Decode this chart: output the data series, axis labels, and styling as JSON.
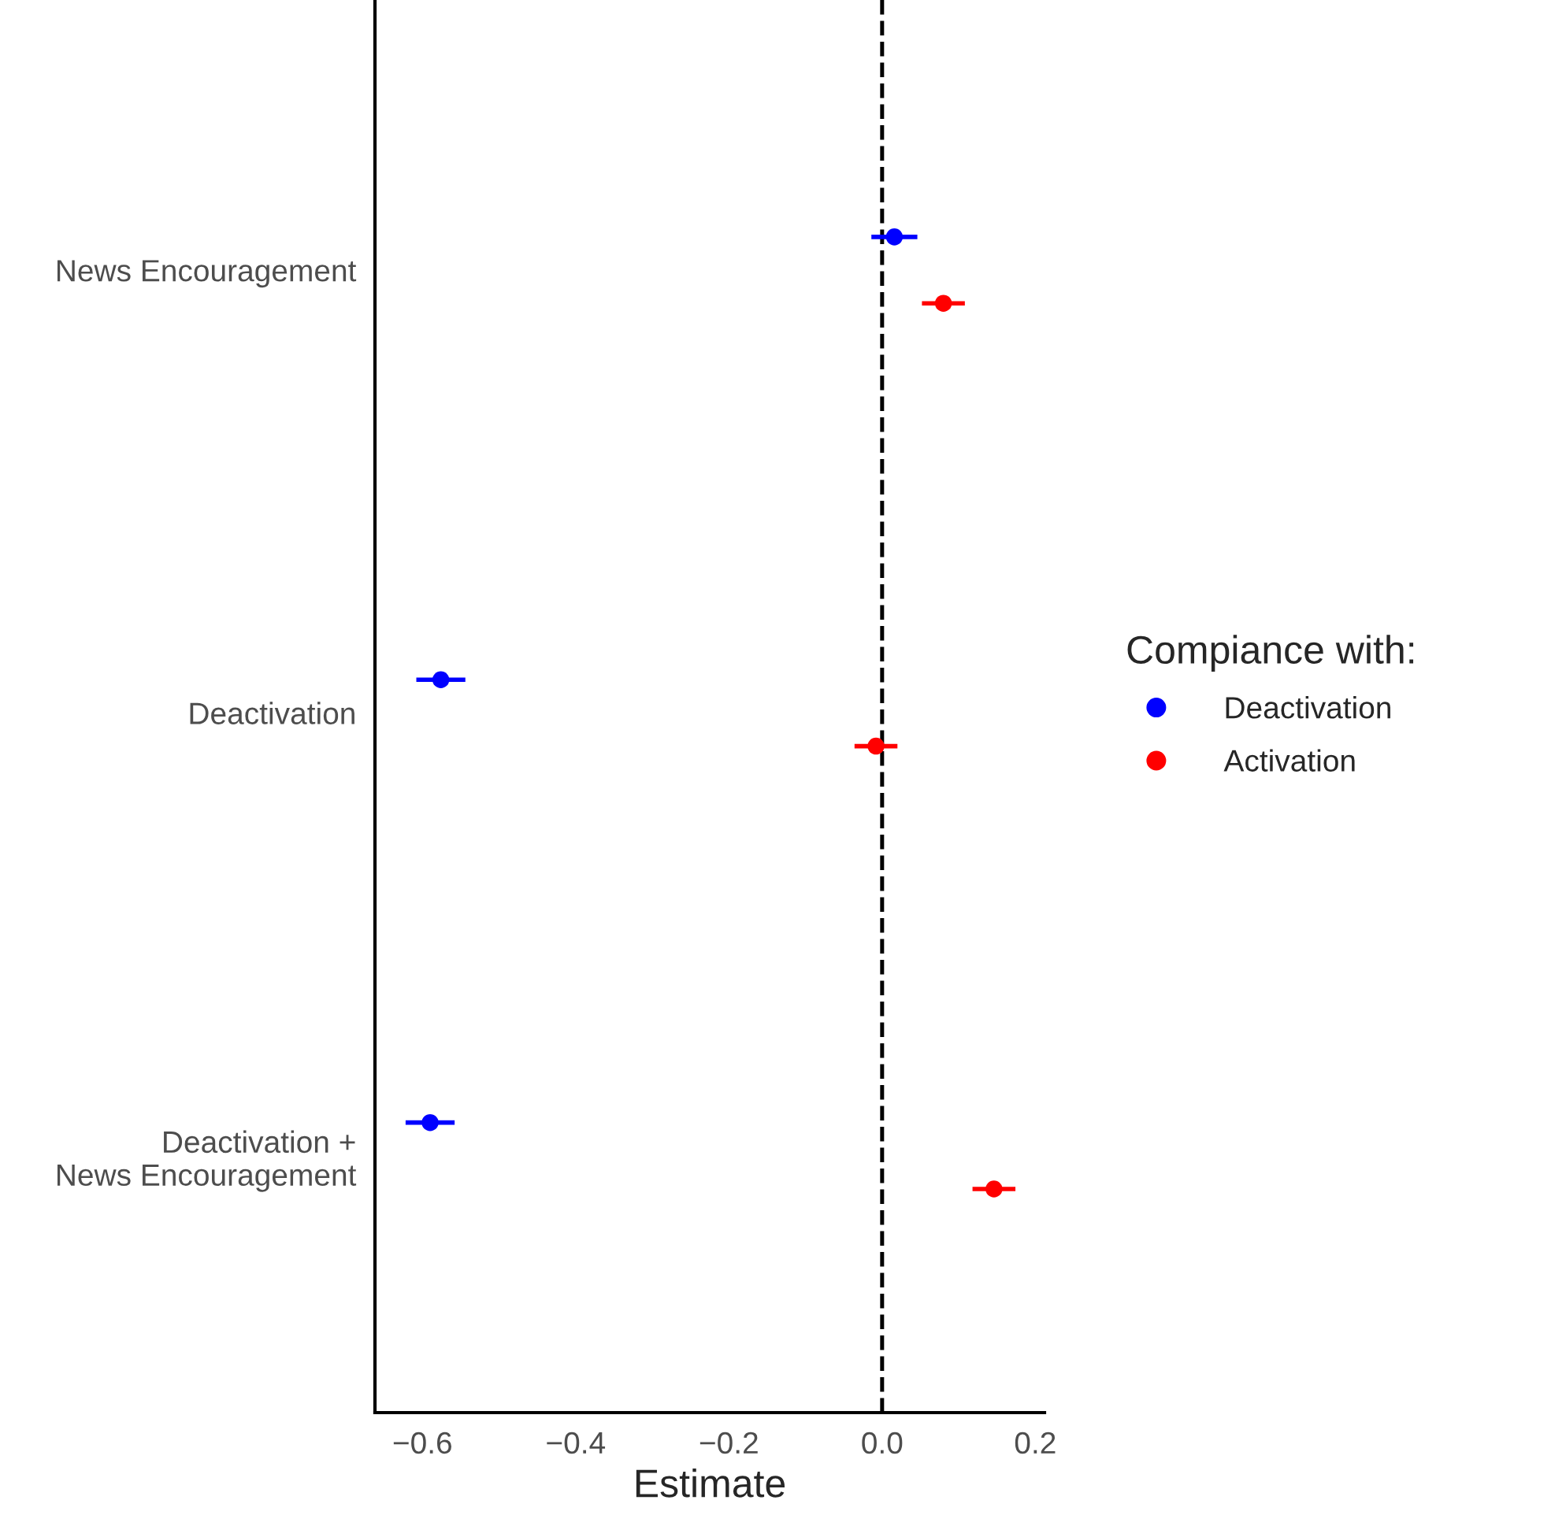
{
  "chart_data": {
    "type": "scatter",
    "orientation": "horizontal",
    "xlabel": "Estimate",
    "legend_title": "Compiance with:",
    "categories": [
      "News Encouragement",
      "Deactivation",
      "Deactivation +\nNews Encouragement"
    ],
    "series": [
      {
        "name": "Deactivation",
        "color": "#0000ff",
        "values": [
          0.016,
          -0.576,
          -0.59
        ],
        "errors": [
          0.03,
          0.032,
          0.032
        ]
      },
      {
        "name": "Activation",
        "color": "#ff0000",
        "values": [
          0.08,
          -0.008,
          0.146
        ],
        "errors": [
          0.028,
          0.028,
          0.028
        ]
      }
    ],
    "xlim": [
      -0.662,
      0.212
    ],
    "xticks": [
      {
        "value": -0.6,
        "label": "−0.6"
      },
      {
        "value": -0.4,
        "label": "−0.4"
      },
      {
        "value": -0.2,
        "label": "−0.2"
      },
      {
        "value": 0,
        "label": "0.0"
      },
      0.2
    ],
    "ref_lines": [
      {
        "axis": "x",
        "value": 0,
        "color": "#000000",
        "line_style": "dashed"
      }
    ],
    "grid": false,
    "legend": "right",
    "marker": "circle"
  }
}
